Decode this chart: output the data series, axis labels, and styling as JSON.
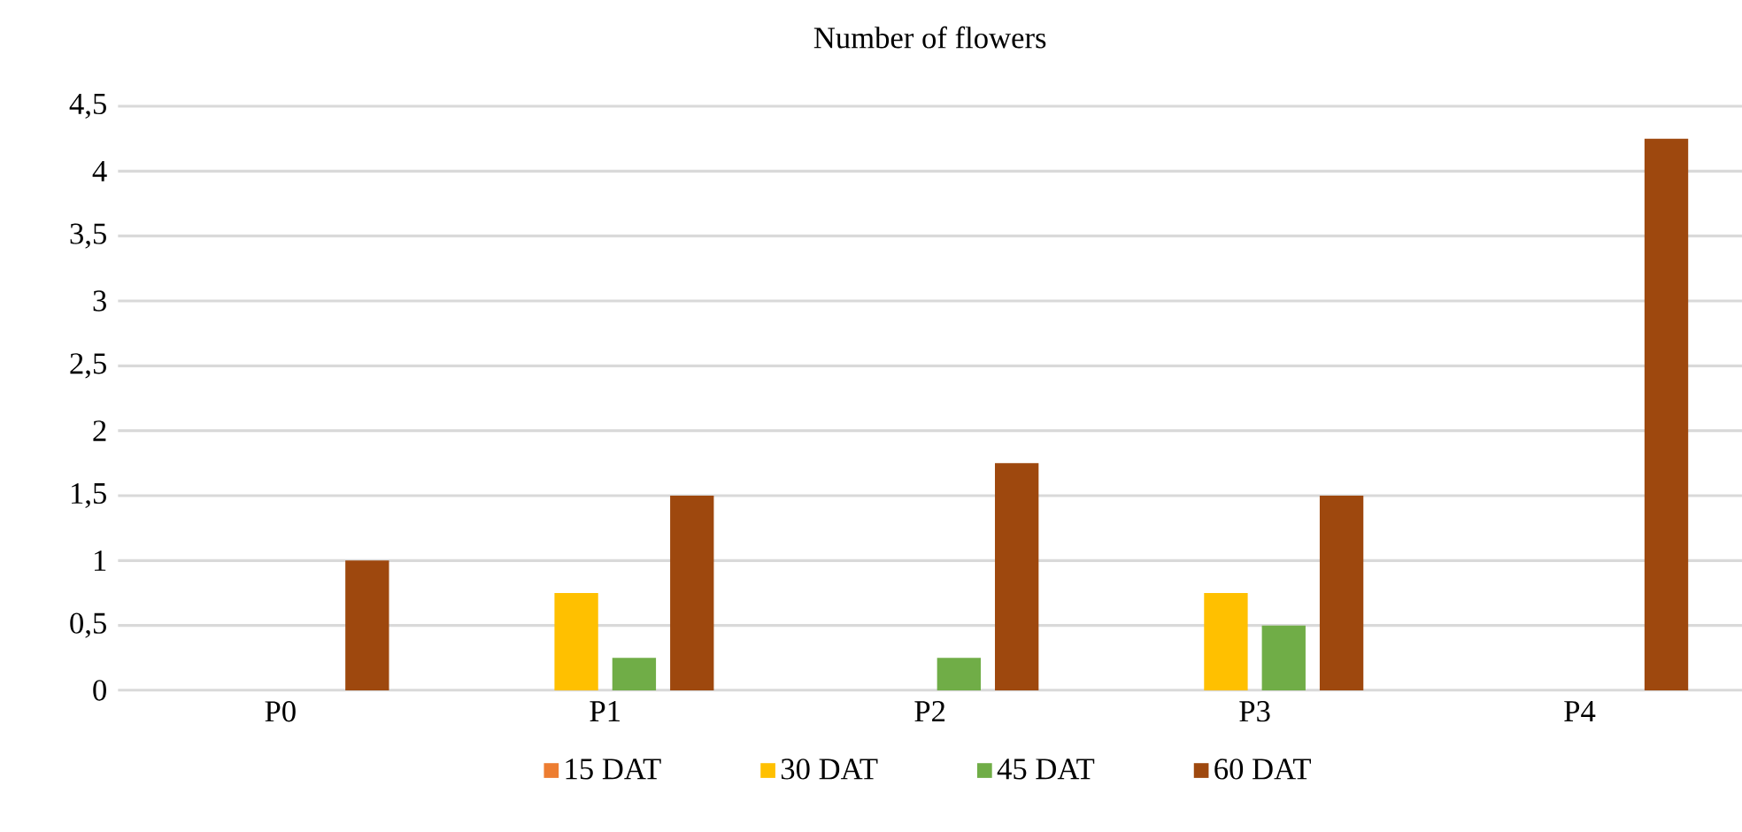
{
  "chart_data": {
    "type": "bar",
    "title": "Number of flowers",
    "categories": [
      "P0",
      "P1",
      "P2",
      "P3",
      "P4"
    ],
    "series": [
      {
        "name": "15 DAT",
        "color": "#ed7d31",
        "values": [
          0,
          0,
          0,
          0,
          0
        ]
      },
      {
        "name": "30 DAT",
        "color": "#ffc000",
        "values": [
          0,
          0.75,
          0,
          0.75,
          0
        ]
      },
      {
        "name": "45 DAT",
        "color": "#70ad47",
        "values": [
          0,
          0.25,
          0.25,
          0.5,
          0
        ]
      },
      {
        "name": "60 DAT",
        "color": "#9e480e",
        "values": [
          1,
          1.5,
          1.75,
          1.5,
          4.25
        ]
      }
    ],
    "ylim": [
      0,
      4.5
    ],
    "yticks": [
      0,
      {
        "value": 0.5,
        "label": "0,5"
      },
      1,
      {
        "value": 1.5,
        "label": "1,5"
      },
      2,
      {
        "value": 2.5,
        "label": "2,5"
      },
      3,
      {
        "value": 3.5,
        "label": "3,5"
      },
      4,
      {
        "value": 4.5,
        "label": "4,5"
      }
    ],
    "grid": "y",
    "legend": "bottom"
  }
}
